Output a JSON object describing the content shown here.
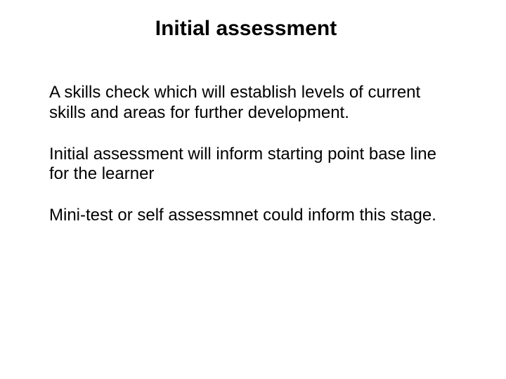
{
  "title": "Initial assessment",
  "paragraphs": [
    "A skills check which will establish levels of current skills and areas for further development.",
    "Initial assessment will inform starting point base line for the learner",
    "Mini-test or self assessmnet could inform this stage."
  ],
  "colors": {
    "background": "#ffffff",
    "text": "#000000"
  },
  "typography": {
    "title_fontsize": 30,
    "title_weight": "bold",
    "body_fontsize": 24,
    "font_family": "Arial"
  }
}
